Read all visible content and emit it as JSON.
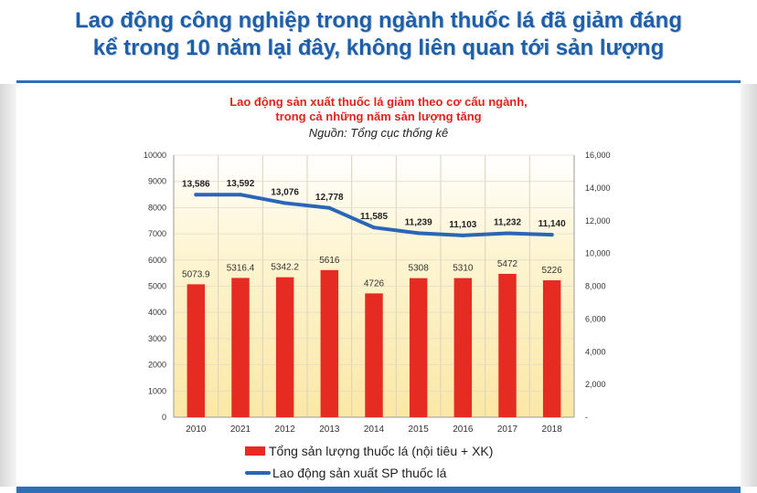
{
  "page": {
    "title_line1": "Lao động công nghiệp trong ngành thuốc lá đã giảm đáng",
    "title_line2": "kể trong 10 năm lại đây, không liên quan tới sản lượng"
  },
  "chart_data": {
    "type": "bar",
    "title_line1": "Lao động sản xuất thuốc lá giảm theo cơ cấu ngành,",
    "title_line2": "trong cả những năm sản lượng tăng",
    "source": "Nguồn: Tổng cục thống kê",
    "categories": [
      "2010",
      "2021",
      "2012",
      "2013",
      "2014",
      "2015",
      "2016",
      "2017",
      "2018"
    ],
    "series": [
      {
        "name": "Tổng sản lượng thuốc lá (nội tiêu + XK)",
        "type": "bar",
        "axis": "left",
        "color": "#e52b22",
        "values": [
          5073.9,
          5316.4,
          5342.2,
          5616,
          4726,
          5308,
          5310,
          5472,
          5226
        ],
        "labels": [
          "5073.9",
          "5316.4",
          "5342.2",
          "5616",
          "4726",
          "5308",
          "5310",
          "5472",
          "5226"
        ]
      },
      {
        "name": "Lao động sản xuất SP thuốc lá",
        "type": "line",
        "axis": "right",
        "color": "#2a66b8",
        "values": [
          13586,
          13592,
          13076,
          12778,
          11585,
          11239,
          11103,
          11232,
          11140
        ],
        "labels": [
          "13,586",
          "13,592",
          "13,076",
          "12,778",
          "11,585",
          "11,239",
          "11,103",
          "11,232",
          "11,140"
        ]
      }
    ],
    "y_left": {
      "range": [
        0,
        10000
      ],
      "ticks": [
        "0",
        "1000",
        "2000",
        "3000",
        "4000",
        "5000",
        "6000",
        "7000",
        "8000",
        "9000",
        "10000"
      ]
    },
    "y_right": {
      "range": [
        0,
        16000
      ],
      "ticks": [
        "-",
        "2,000",
        "4,000",
        "6,000",
        "8,000",
        "10,000",
        "12,000",
        "14,000",
        "16,000"
      ]
    },
    "grid": true,
    "legend_position": "bottom-center",
    "background": "#fdf5d4"
  }
}
